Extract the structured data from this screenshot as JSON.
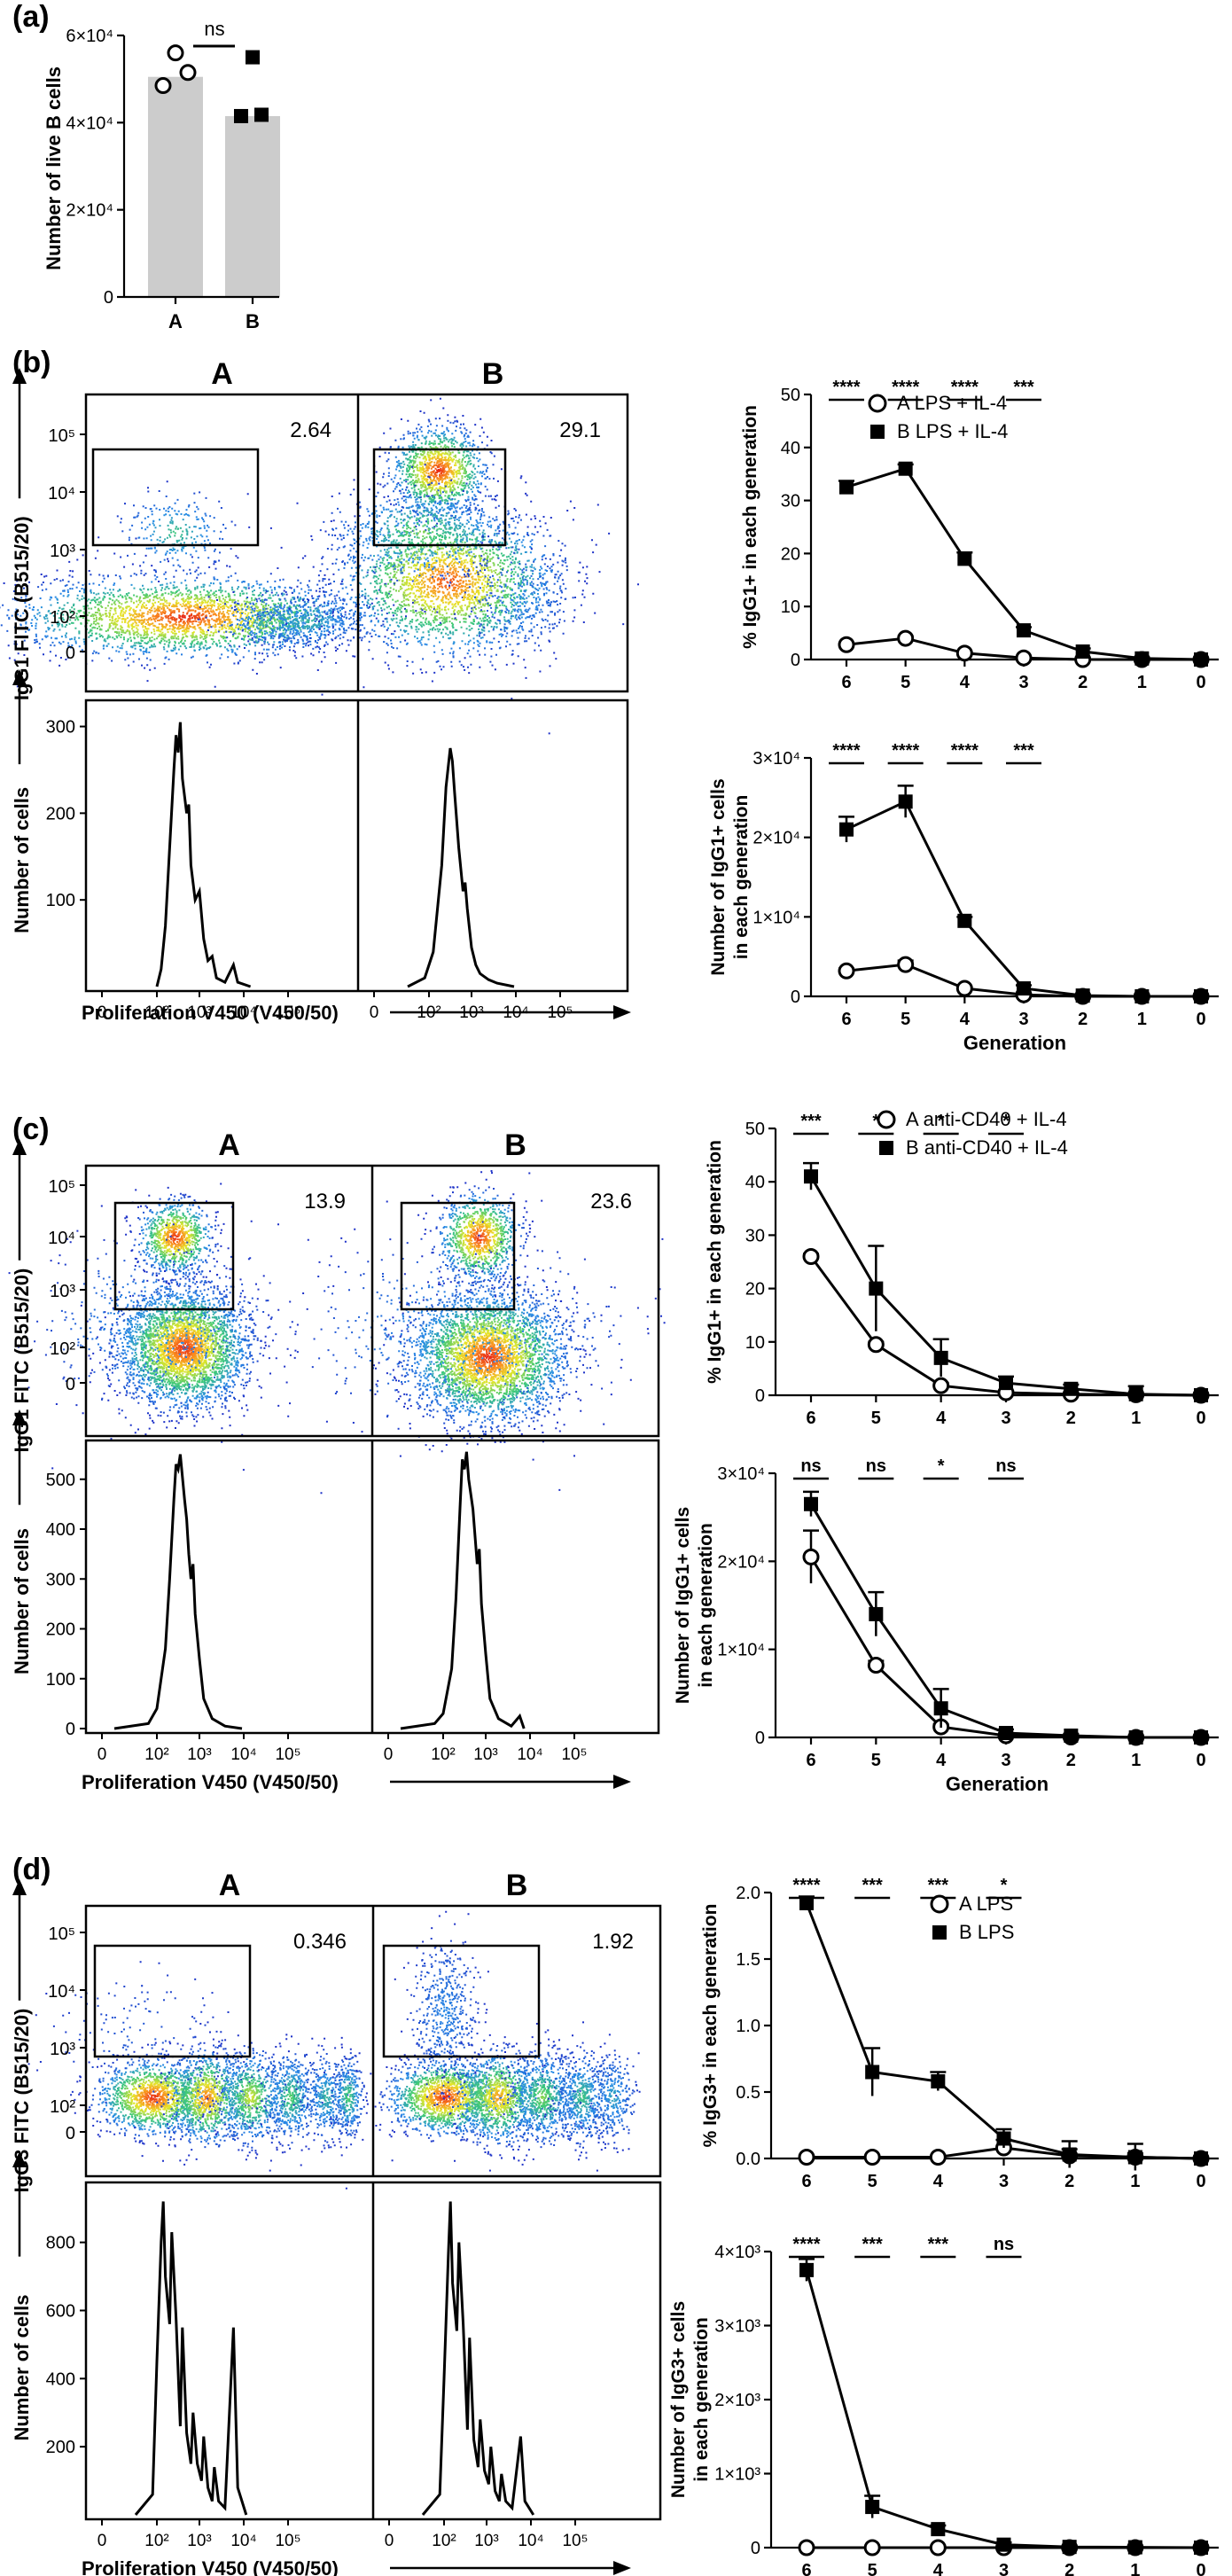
{
  "panels": {
    "a": "(a)",
    "b": "(b)",
    "c": "(c)",
    "d": "(d)"
  },
  "chart_data": [
    {
      "id": "a-bar",
      "type": "bar",
      "panel": "(a)",
      "categories": [
        "A",
        "B"
      ],
      "values": [
        50500,
        41500
      ],
      "points": [
        [
          56000,
          48500,
          51500
        ],
        [
          55000,
          41500,
          41800
        ]
      ],
      "ylabel": "Number of live B cells",
      "ylim": [
        0,
        60000
      ],
      "yticks": [
        "0",
        "2×10⁴",
        "4×10⁴",
        "6×10⁴"
      ],
      "annotation": "ns",
      "colors": {
        "bar": "#cccccc"
      }
    },
    {
      "id": "b-dots",
      "type": "scatter",
      "panel": "(b)",
      "samples": [
        "A",
        "B"
      ],
      "gate_values": [
        "2.64",
        "29.1"
      ],
      "ylabel": "IgG1 FITC (B515/20)",
      "yticks": [
        "0",
        "10²",
        "10³",
        "10⁴",
        "10⁵"
      ]
    },
    {
      "id": "b-hist",
      "type": "line",
      "panel": "(b)",
      "ylabel": "Number of cells",
      "xlabel": "Proliferation V450 (V450/50)",
      "ylim": [
        0,
        320
      ],
      "yticks": [
        "100",
        "200",
        "300"
      ],
      "xticks": [
        "0",
        "10²",
        "10³",
        "10⁴",
        "10⁵"
      ],
      "series": [
        {
          "values": [
            [
              2.0,
              0
            ],
            [
              2.1,
              20
            ],
            [
              2.2,
              70
            ],
            [
              2.3,
              160
            ],
            [
              2.4,
              250
            ],
            [
              2.45,
              290
            ],
            [
              2.5,
              270
            ],
            [
              2.55,
              305
            ],
            [
              2.6,
              240
            ],
            [
              2.7,
              200
            ],
            [
              2.75,
              210
            ],
            [
              2.8,
              140
            ],
            [
              2.9,
              100
            ],
            [
              3.0,
              110
            ],
            [
              3.1,
              55
            ],
            [
              3.2,
              30
            ],
            [
              3.3,
              35
            ],
            [
              3.4,
              10
            ],
            [
              3.6,
              5
            ],
            [
              3.8,
              25
            ],
            [
              3.9,
              5
            ],
            [
              4.2,
              0
            ]
          ]
        },
        {
          "values": [
            [
              1.5,
              0
            ],
            [
              1.9,
              10
            ],
            [
              2.1,
              40
            ],
            [
              2.3,
              140
            ],
            [
              2.4,
              230
            ],
            [
              2.5,
              275
            ],
            [
              2.55,
              260
            ],
            [
              2.6,
              225
            ],
            [
              2.7,
              160
            ],
            [
              2.8,
              110
            ],
            [
              2.85,
              120
            ],
            [
              2.9,
              90
            ],
            [
              3.0,
              45
            ],
            [
              3.1,
              25
            ],
            [
              3.2,
              15
            ],
            [
              3.4,
              8
            ],
            [
              3.6,
              4
            ],
            [
              4.0,
              0
            ]
          ]
        }
      ]
    },
    {
      "id": "b-pct",
      "type": "line",
      "panel": "(b)",
      "categories": [
        "6",
        "5",
        "4",
        "3",
        "2",
        "1",
        "0"
      ],
      "ylabel": "% IgG1+ in each generation",
      "ylim": [
        0,
        50
      ],
      "yticks": [
        "0",
        "10",
        "20",
        "30",
        "40",
        "50"
      ],
      "significance": [
        "****",
        "****",
        "****",
        "***"
      ],
      "series": [
        {
          "name": "A LPS + IL-4",
          "values": [
            2.8,
            4,
            1.2,
            0.3,
            0,
            0,
            0
          ],
          "errors": [
            0.3,
            0.4,
            0.2,
            0.1,
            0,
            0,
            0
          ]
        },
        {
          "name": "B LPS + IL-4",
          "values": [
            32.5,
            36,
            19,
            5.5,
            1.5,
            0.2,
            0
          ],
          "errors": [
            1.2,
            0.8,
            1.2,
            0.6,
            0.6,
            0.2,
            0
          ]
        }
      ]
    },
    {
      "id": "b-num",
      "type": "line",
      "panel": "(b)",
      "categories": [
        "6",
        "5",
        "4",
        "3",
        "2",
        "1",
        "0"
      ],
      "ylabel": "Number of IgG1+ cells",
      "ylabel2": "in each generation",
      "xlabel": "Generation",
      "ylim": [
        0,
        30000
      ],
      "yticks": [
        "0",
        "1×10⁴",
        "2×10⁴",
        "3×10⁴"
      ],
      "significance": [
        "****",
        "****",
        "****",
        "***"
      ],
      "series": [
        {
          "name": "A LPS + IL-4",
          "values": [
            3200,
            4000,
            1000,
            200,
            0,
            0,
            0
          ],
          "errors": [
            300,
            500,
            200,
            100,
            0,
            0,
            0
          ]
        },
        {
          "name": "B LPS + IL-4",
          "values": [
            21000,
            24500,
            9500,
            1000,
            100,
            0,
            0
          ],
          "errors": [
            1600,
            2000,
            500,
            400,
            100,
            0,
            0
          ]
        }
      ]
    },
    {
      "id": "c-dots",
      "type": "scatter",
      "panel": "(c)",
      "samples": [
        "A",
        "B"
      ],
      "gate_values": [
        "13.9",
        "23.6"
      ],
      "ylabel": "IgG1 FITC (B515/20)",
      "yticks": [
        "0",
        "10²",
        "10³",
        "10⁴",
        "10⁵"
      ]
    },
    {
      "id": "c-hist",
      "type": "line",
      "panel": "(c)",
      "ylabel": "Number of cells",
      "xlabel": "Proliferation V450 (V450/50)",
      "ylim": [
        0,
        560
      ],
      "yticks": [
        "0",
        "100",
        "200",
        "300",
        "400",
        "500"
      ],
      "xticks": [
        "0",
        "10²",
        "10³",
        "10⁴",
        "10⁵"
      ],
      "series": [
        {
          "values": [
            [
              1.0,
              0
            ],
            [
              1.8,
              10
            ],
            [
              2.0,
              40
            ],
            [
              2.2,
              160
            ],
            [
              2.3,
              300
            ],
            [
              2.4,
              460
            ],
            [
              2.45,
              530
            ],
            [
              2.5,
              520
            ],
            [
              2.55,
              550
            ],
            [
              2.65,
              460
            ],
            [
              2.7,
              420
            ],
            [
              2.75,
              350
            ],
            [
              2.8,
              300
            ],
            [
              2.85,
              330
            ],
            [
              2.9,
              230
            ],
            [
              3.0,
              140
            ],
            [
              3.1,
              60
            ],
            [
              3.3,
              20
            ],
            [
              3.6,
              5
            ],
            [
              4.0,
              0
            ]
          ]
        },
        {
          "values": [
            [
              1.0,
              0
            ],
            [
              1.8,
              10
            ],
            [
              2.0,
              30
            ],
            [
              2.2,
              120
            ],
            [
              2.3,
              260
            ],
            [
              2.4,
              450
            ],
            [
              2.45,
              540
            ],
            [
              2.5,
              520
            ],
            [
              2.55,
              555
            ],
            [
              2.6,
              500
            ],
            [
              2.7,
              440
            ],
            [
              2.8,
              330
            ],
            [
              2.85,
              360
            ],
            [
              2.9,
              250
            ],
            [
              3.0,
              150
            ],
            [
              3.1,
              60
            ],
            [
              3.3,
              20
            ],
            [
              3.6,
              5
            ],
            [
              3.8,
              25
            ],
            [
              3.9,
              0
            ]
          ]
        }
      ]
    },
    {
      "id": "c-pct",
      "type": "line",
      "panel": "(c)",
      "categories": [
        "6",
        "5",
        "4",
        "3",
        "2",
        "1",
        "0"
      ],
      "ylabel": "% IgG1+ in each generation",
      "ylim": [
        0,
        50
      ],
      "yticks": [
        "0",
        "10",
        "20",
        "30",
        "40",
        "50"
      ],
      "significance": [
        "***",
        "*",
        "*",
        "*"
      ],
      "series": [
        {
          "name": "A anti-CD40 + IL-4",
          "values": [
            26,
            9.5,
            1.8,
            0.5,
            0.2,
            0.1,
            0
          ],
          "errors": [
            0.5,
            0.5,
            0.5,
            0.3,
            0.2,
            0.1,
            0
          ]
        },
        {
          "name": "B anti-CD40 + IL-4",
          "values": [
            41,
            20,
            7,
            2.3,
            1.2,
            0.2,
            0
          ],
          "errors": [
            2.5,
            8,
            3.5,
            1.2,
            0.8,
            1.5,
            0
          ]
        }
      ]
    },
    {
      "id": "c-num",
      "type": "line",
      "panel": "(c)",
      "categories": [
        "6",
        "5",
        "4",
        "3",
        "2",
        "1",
        "0"
      ],
      "ylabel": "Number of IgG1+ cells",
      "ylabel2": "in each generation",
      "xlabel": "Generation",
      "ylim": [
        0,
        30000
      ],
      "yticks": [
        "0",
        "1×10⁴",
        "2×10⁴",
        "3×10⁴"
      ],
      "significance": [
        "ns",
        "ns",
        "*",
        "ns"
      ],
      "series": [
        {
          "name": "A anti-CD40 + IL-4",
          "values": [
            20500,
            8200,
            1200,
            200,
            50,
            0,
            0
          ],
          "errors": [
            3000,
            500,
            300,
            100,
            50,
            0,
            0
          ]
        },
        {
          "name": "B anti-CD40 + IL-4",
          "values": [
            26500,
            14000,
            3300,
            500,
            200,
            0,
            0
          ],
          "errors": [
            1400,
            2500,
            2200,
            400,
            200,
            0,
            0
          ]
        }
      ]
    },
    {
      "id": "d-dots",
      "type": "scatter",
      "panel": "(d)",
      "samples": [
        "A",
        "B"
      ],
      "gate_values": [
        "0.346",
        "1.92"
      ],
      "ylabel": "IgG3 FITC (B515/20)",
      "yticks": [
        "0",
        "10²",
        "10³",
        "10⁴",
        "10⁵"
      ]
    },
    {
      "id": "d-hist",
      "type": "line",
      "panel": "(d)",
      "ylabel": "Number of cells",
      "xlabel": "Proliferation V450 (V450/50)",
      "ylim": [
        0,
        950
      ],
      "yticks": [
        "200",
        "400",
        "600",
        "800"
      ],
      "xticks": [
        "0",
        "10²",
        "10³",
        "10⁴",
        "10⁵"
      ],
      "series": [
        {
          "values": [
            [
              1.5,
              0
            ],
            [
              1.9,
              60
            ],
            [
              2.0,
              450
            ],
            [
              2.1,
              800
            ],
            [
              2.15,
              920
            ],
            [
              2.2,
              700
            ],
            [
              2.3,
              560
            ],
            [
              2.35,
              830
            ],
            [
              2.45,
              580
            ],
            [
              2.55,
              260
            ],
            [
              2.6,
              550
            ],
            [
              2.7,
              240
            ],
            [
              2.8,
              150
            ],
            [
              2.85,
              300
            ],
            [
              2.95,
              150
            ],
            [
              3.05,
              100
            ],
            [
              3.1,
              230
            ],
            [
              3.2,
              80
            ],
            [
              3.3,
              40
            ],
            [
              3.35,
              140
            ],
            [
              3.45,
              40
            ],
            [
              3.6,
              20
            ],
            [
              3.8,
              550
            ],
            [
              3.9,
              80
            ],
            [
              4.1,
              0
            ]
          ]
        },
        {
          "values": [
            [
              1.5,
              0
            ],
            [
              1.9,
              60
            ],
            [
              2.0,
              400
            ],
            [
              2.1,
              760
            ],
            [
              2.15,
              920
            ],
            [
              2.2,
              680
            ],
            [
              2.3,
              540
            ],
            [
              2.35,
              800
            ],
            [
              2.45,
              560
            ],
            [
              2.55,
              250
            ],
            [
              2.6,
              520
            ],
            [
              2.7,
              220
            ],
            [
              2.8,
              140
            ],
            [
              2.85,
              280
            ],
            [
              2.95,
              130
            ],
            [
              3.05,
              90
            ],
            [
              3.1,
              200
            ],
            [
              3.2,
              70
            ],
            [
              3.3,
              40
            ],
            [
              3.35,
              120
            ],
            [
              3.45,
              40
            ],
            [
              3.6,
              20
            ],
            [
              3.8,
              230
            ],
            [
              3.9,
              40
            ],
            [
              4.1,
              0
            ]
          ]
        }
      ]
    },
    {
      "id": "d-pct",
      "type": "line",
      "panel": "(d)",
      "categories": [
        "6",
        "5",
        "4",
        "3",
        "2",
        "1",
        "0"
      ],
      "ylabel": "% IgG3+ in each generation",
      "ylim": [
        0,
        2.0
      ],
      "yticks": [
        "0.0",
        "0.5",
        "1.0",
        "1.5",
        "2.0"
      ],
      "significance": [
        "****",
        "***",
        "***",
        "*"
      ],
      "series": [
        {
          "name": "A LPS",
          "values": [
            0.01,
            0.01,
            0.01,
            0.08,
            0.02,
            0.01,
            0
          ],
          "errors": [
            0,
            0,
            0,
            0.06,
            0.05,
            0.03,
            0
          ]
        },
        {
          "name": "B LPS",
          "values": [
            1.92,
            0.65,
            0.58,
            0.15,
            0.03,
            0.01,
            0
          ],
          "errors": [
            0.05,
            0.18,
            0.07,
            0.07,
            0.1,
            0.1,
            0
          ]
        }
      ]
    },
    {
      "id": "d-num",
      "type": "line",
      "panel": "(d)",
      "categories": [
        "6",
        "5",
        "4",
        "3",
        "2",
        "1",
        "0"
      ],
      "ylabel": "Number of IgG3+ cells",
      "ylabel2": "in each generation",
      "xlabel": "Generation",
      "ylim": [
        0,
        4000
      ],
      "yticks": [
        "0",
        "1×10³",
        "2×10³",
        "3×10³",
        "4×10³"
      ],
      "significance": [
        "****",
        "***",
        "***",
        "ns"
      ],
      "series": [
        {
          "name": "A LPS",
          "values": [
            0,
            0,
            0,
            0,
            0,
            0,
            0
          ],
          "errors": [
            0,
            0,
            0,
            0,
            0,
            0,
            0
          ]
        },
        {
          "name": "B LPS",
          "values": [
            3750,
            550,
            250,
            40,
            10,
            5,
            0
          ],
          "errors": [
            150,
            150,
            50,
            30,
            10,
            5,
            0
          ]
        }
      ]
    }
  ]
}
